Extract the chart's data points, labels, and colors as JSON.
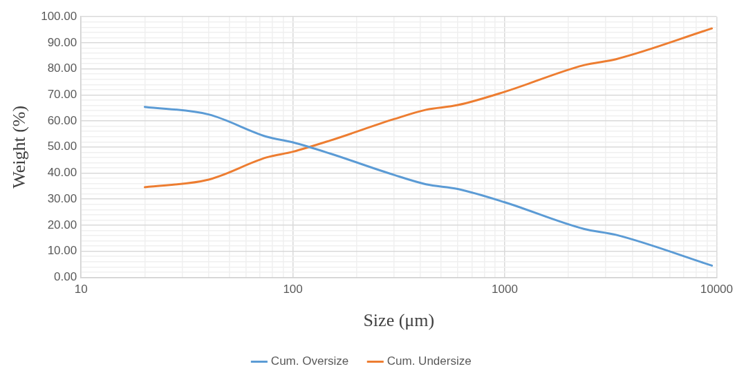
{
  "chart_data": {
    "type": "line",
    "xlabel": "Size (μm)",
    "ylabel": "Weight (%)",
    "log": "x",
    "xlim": [
      10,
      10000
    ],
    "xticks": [
      10,
      {
        "value": 20,
        "label": null
      },
      {
        "value": 30,
        "label": null
      },
      {
        "value": 40,
        "label": null
      },
      {
        "value": 50,
        "label": null
      },
      {
        "value": 60,
        "label": null
      },
      {
        "value": 70,
        "label": null
      },
      {
        "value": 80,
        "label": null
      },
      {
        "value": 90,
        "label": null
      },
      100,
      {
        "value": 200,
        "label": null
      },
      {
        "value": 300,
        "label": null
      },
      {
        "value": 400,
        "label": null
      },
      {
        "value": 500,
        "label": null
      },
      {
        "value": 600,
        "label": null
      },
      {
        "value": 700,
        "label": null
      },
      {
        "value": 800,
        "label": null
      },
      {
        "value": 900,
        "label": null
      },
      1000,
      {
        "value": 2000,
        "label": null
      },
      {
        "value": 3000,
        "label": null
      },
      {
        "value": 4000,
        "label": null
      },
      {
        "value": 5000,
        "label": null
      },
      {
        "value": 6000,
        "label": null
      },
      {
        "value": 7000,
        "label": null
      },
      {
        "value": 8000,
        "label": null
      },
      {
        "value": 9000,
        "label": null
      },
      10000
    ],
    "ylim": [
      0,
      100
    ],
    "yticks": [
      {
        "value": 0,
        "label": "0.00"
      },
      {
        "value": 2,
        "label": null
      },
      {
        "value": 4,
        "label": null
      },
      {
        "value": 6,
        "label": null
      },
      {
        "value": 8,
        "label": null
      },
      {
        "value": 10,
        "label": "10.00"
      },
      {
        "value": 12,
        "label": null
      },
      {
        "value": 14,
        "label": null
      },
      {
        "value": 16,
        "label": null
      },
      {
        "value": 18,
        "label": null
      },
      {
        "value": 20,
        "label": "20.00"
      },
      {
        "value": 22,
        "label": null
      },
      {
        "value": 24,
        "label": null
      },
      {
        "value": 26,
        "label": null
      },
      {
        "value": 28,
        "label": null
      },
      {
        "value": 30,
        "label": "30.00"
      },
      {
        "value": 32,
        "label": null
      },
      {
        "value": 34,
        "label": null
      },
      {
        "value": 36,
        "label": null
      },
      {
        "value": 38,
        "label": null
      },
      {
        "value": 40,
        "label": "40.00"
      },
      {
        "value": 42,
        "label": null
      },
      {
        "value": 44,
        "label": null
      },
      {
        "value": 46,
        "label": null
      },
      {
        "value": 48,
        "label": null
      },
      {
        "value": 50,
        "label": "50.00"
      },
      {
        "value": 52,
        "label": null
      },
      {
        "value": 54,
        "label": null
      },
      {
        "value": 56,
        "label": null
      },
      {
        "value": 58,
        "label": null
      },
      {
        "value": 60,
        "label": "60.00"
      },
      {
        "value": 62,
        "label": null
      },
      {
        "value": 64,
        "label": null
      },
      {
        "value": 66,
        "label": null
      },
      {
        "value": 68,
        "label": null
      },
      {
        "value": 70,
        "label": "70.00"
      },
      {
        "value": 72,
        "label": null
      },
      {
        "value": 74,
        "label": null
      },
      {
        "value": 76,
        "label": null
      },
      {
        "value": 78,
        "label": null
      },
      {
        "value": 80,
        "label": "80.00"
      },
      {
        "value": 82,
        "label": null
      },
      {
        "value": 84,
        "label": null
      },
      {
        "value": 86,
        "label": null
      },
      {
        "value": 88,
        "label": null
      },
      {
        "value": 90,
        "label": "90.00"
      },
      {
        "value": 92,
        "label": null
      },
      {
        "value": 94,
        "label": null
      },
      {
        "value": 96,
        "label": null
      },
      {
        "value": 98,
        "label": null
      },
      {
        "value": 100,
        "label": "100.00"
      }
    ],
    "grid": true,
    "legend": "bottom",
    "marker": "none",
    "line_style": "solid",
    "series": [
      {
        "name": "Cum. Oversize",
        "color": "#5b9bd5",
        "x": [
          20,
          40,
          75,
          100,
          150,
          300,
          425,
          600,
          1000,
          2360,
          3350,
          9500
        ],
        "values": [
          65.4,
          62.5,
          54.0,
          51.8,
          47.5,
          39.3,
          35.7,
          33.9,
          28.8,
          18.6,
          16.3,
          4.5
        ]
      },
      {
        "name": "Cum. Undersize",
        "color": "#ed7d31",
        "x": [
          20,
          40,
          75,
          100,
          150,
          300,
          425,
          600,
          1000,
          2360,
          3350,
          9500
        ],
        "values": [
          34.6,
          37.5,
          46.0,
          48.2,
          52.5,
          60.7,
          64.3,
          66.1,
          71.2,
          81.4,
          83.7,
          95.5
        ]
      }
    ]
  }
}
